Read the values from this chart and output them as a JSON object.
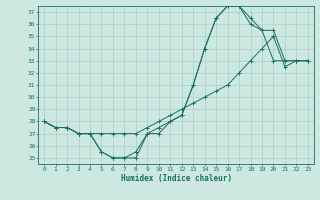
{
  "xlabel": "Humidex (Indice chaleur)",
  "xlim": [
    -0.5,
    23.5
  ],
  "ylim": [
    24.5,
    37.5
  ],
  "xticks": [
    0,
    1,
    2,
    3,
    4,
    5,
    6,
    7,
    8,
    9,
    10,
    11,
    12,
    13,
    14,
    15,
    16,
    17,
    18,
    19,
    20,
    21,
    22,
    23
  ],
  "yticks": [
    25,
    26,
    27,
    28,
    29,
    30,
    31,
    32,
    33,
    34,
    35,
    36,
    37
  ],
  "bg_color": "#cce8e0",
  "grid_color": "#aacfc8",
  "line_color": "#1a7060",
  "line1_x": [
    0,
    1,
    2,
    3,
    4,
    5,
    6,
    7,
    8,
    9,
    10,
    11,
    12,
    13,
    14,
    15,
    16,
    17,
    18,
    19,
    20,
    21,
    22,
    23
  ],
  "line1_y": [
    28,
    27.5,
    27.5,
    27,
    27,
    25.5,
    25,
    25,
    25,
    27,
    27,
    28,
    28.5,
    31,
    34,
    36.5,
    37.5,
    37.5,
    36.5,
    35.5,
    33,
    33,
    33,
    33
  ],
  "line2_x": [
    0,
    1,
    2,
    3,
    4,
    5,
    6,
    7,
    8,
    9,
    10,
    11,
    12,
    13,
    14,
    15,
    16,
    17,
    18,
    19,
    20,
    21,
    22,
    23
  ],
  "line2_y": [
    28,
    27.5,
    27.5,
    27,
    27,
    27,
    27,
    27,
    27,
    27.5,
    28,
    28.5,
    29,
    29.5,
    30,
    30.5,
    31,
    32,
    33,
    34,
    35,
    32.5,
    33,
    33
  ],
  "line3_x": [
    0,
    1,
    2,
    3,
    4,
    5,
    6,
    7,
    8,
    9,
    10,
    11,
    12,
    13,
    14,
    15,
    16,
    17,
    18,
    19,
    20,
    21,
    22,
    23
  ],
  "line3_y": [
    28,
    27.5,
    27.5,
    27,
    27,
    25.5,
    25,
    25,
    25.5,
    27,
    27.5,
    28,
    28.5,
    31,
    34,
    36.5,
    37.5,
    37.5,
    36,
    35.5,
    35.5,
    33,
    33,
    33
  ]
}
